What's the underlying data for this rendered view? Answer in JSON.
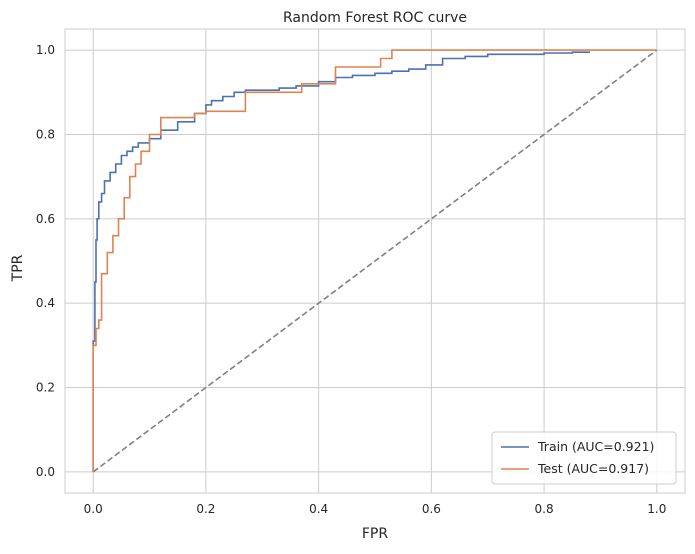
{
  "chart_data": {
    "type": "line",
    "title": "Random Forest ROC curve",
    "xlabel": "FPR",
    "ylabel": "TPR",
    "xlim": [
      -0.05,
      1.05
    ],
    "ylim": [
      -0.05,
      1.05
    ],
    "xticks": [
      0.0,
      0.2,
      0.4,
      0.6,
      0.8,
      1.0
    ],
    "xtick_labels": [
      "0.0",
      "0.2",
      "0.4",
      "0.6",
      "0.8",
      "1.0"
    ],
    "yticks": [
      0.0,
      0.2,
      0.4,
      0.6,
      0.8,
      1.0
    ],
    "ytick_labels": [
      "0.0",
      "0.2",
      "0.4",
      "0.6",
      "0.8",
      "1.0"
    ],
    "grid": true,
    "legend_position": "lower-right",
    "series": [
      {
        "name": "Train (AUC=0.921)",
        "color": "#4c72b0",
        "style": "solid",
        "x": [
          0.0,
          0.0,
          0.003,
          0.005,
          0.007,
          0.01,
          0.015,
          0.02,
          0.03,
          0.04,
          0.05,
          0.06,
          0.07,
          0.08,
          0.1,
          0.12,
          0.15,
          0.18,
          0.2,
          0.21,
          0.23,
          0.25,
          0.27,
          0.3,
          0.33,
          0.36,
          0.4,
          0.43,
          0.46,
          0.5,
          0.53,
          0.56,
          0.59,
          0.62,
          0.66,
          0.7,
          0.75,
          0.8,
          0.85,
          0.88
        ],
        "y": [
          0.0,
          0.31,
          0.45,
          0.55,
          0.6,
          0.64,
          0.66,
          0.69,
          0.71,
          0.73,
          0.75,
          0.76,
          0.77,
          0.78,
          0.79,
          0.81,
          0.83,
          0.85,
          0.87,
          0.88,
          0.89,
          0.9,
          0.905,
          0.905,
          0.91,
          0.915,
          0.925,
          0.935,
          0.94,
          0.945,
          0.95,
          0.955,
          0.965,
          0.98,
          0.985,
          0.99,
          0.99,
          0.993,
          0.995,
          0.997
        ]
      },
      {
        "name": "Test (AUC=0.917)",
        "color": "#dd8452",
        "style": "solid",
        "x": [
          0.0,
          0.0,
          0.005,
          0.005,
          0.01,
          0.01,
          0.015,
          0.015,
          0.025,
          0.025,
          0.035,
          0.035,
          0.045,
          0.045,
          0.055,
          0.055,
          0.065,
          0.065,
          0.075,
          0.075,
          0.085,
          0.085,
          0.1,
          0.1,
          0.12,
          0.12,
          0.18,
          0.18,
          0.2,
          0.2,
          0.27,
          0.27,
          0.37,
          0.37,
          0.43,
          0.43,
          0.51,
          0.51,
          0.53,
          0.53,
          1.0
        ],
        "y": [
          0.0,
          0.3,
          0.3,
          0.34,
          0.34,
          0.36,
          0.36,
          0.47,
          0.47,
          0.52,
          0.52,
          0.56,
          0.56,
          0.6,
          0.6,
          0.65,
          0.65,
          0.7,
          0.7,
          0.73,
          0.73,
          0.76,
          0.76,
          0.8,
          0.8,
          0.84,
          0.84,
          0.85,
          0.85,
          0.855,
          0.855,
          0.9,
          0.9,
          0.92,
          0.92,
          0.96,
          0.96,
          0.98,
          0.98,
          1.0,
          1.0
        ]
      },
      {
        "name": "",
        "color": "#808080",
        "style": "dashed",
        "x": [
          0.0,
          1.0
        ],
        "y": [
          0.0,
          1.0
        ]
      }
    ]
  }
}
